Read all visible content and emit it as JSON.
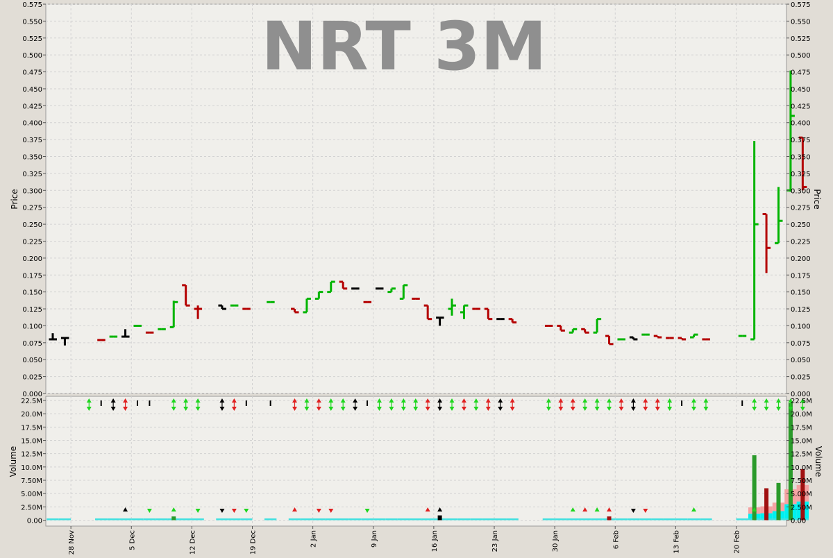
{
  "chart_data": [
    {
      "type": "ohlc",
      "title": "NRT 3M",
      "ylabel": "Price",
      "ylim": [
        0,
        0.575
      ],
      "yticks": [
        "0.000",
        "0.025",
        "0.050",
        "0.075",
        "0.100",
        "0.125",
        "0.150",
        "0.175",
        "0.200",
        "0.225",
        "0.250",
        "0.275",
        "0.300",
        "0.325",
        "0.350",
        "0.375",
        "0.400",
        "0.425",
        "0.450",
        "0.475",
        "0.500",
        "0.525",
        "0.550",
        "0.575"
      ],
      "grid": true,
      "colors": {
        "up": "#00b400",
        "down": "#b40000",
        "neutral": "#000000",
        "background": "#f0efeb"
      },
      "bars": [
        {
          "x": 0,
          "open": 0.08,
          "high": 0.089,
          "low": 0.08,
          "close": 0.08,
          "dir": "n"
        },
        {
          "x": 1,
          "open": 0.082,
          "high": 0.082,
          "low": 0.071,
          "close": 0.082,
          "dir": "n"
        },
        {
          "x": 4,
          "open": 0.079,
          "high": 0.079,
          "low": 0.079,
          "close": 0.079,
          "dir": "d"
        },
        {
          "x": 5,
          "open": 0.084,
          "high": 0.084,
          "low": 0.084,
          "close": 0.084,
          "dir": "u"
        },
        {
          "x": 6,
          "open": 0.084,
          "high": 0.095,
          "low": 0.084,
          "close": 0.084,
          "dir": "n"
        },
        {
          "x": 7,
          "open": 0.1,
          "high": 0.1,
          "low": 0.1,
          "close": 0.1,
          "dir": "u"
        },
        {
          "x": 8,
          "open": 0.09,
          "high": 0.09,
          "low": 0.09,
          "close": 0.09,
          "dir": "d"
        },
        {
          "x": 9,
          "open": 0.095,
          "high": 0.095,
          "low": 0.095,
          "close": 0.095,
          "dir": "u"
        },
        {
          "x": 10,
          "open": 0.098,
          "high": 0.137,
          "low": 0.098,
          "close": 0.135,
          "dir": "u"
        },
        {
          "x": 11,
          "open": 0.16,
          "high": 0.16,
          "low": 0.13,
          "close": 0.13,
          "dir": "d"
        },
        {
          "x": 12,
          "open": 0.125,
          "high": 0.13,
          "low": 0.11,
          "close": 0.125,
          "dir": "d"
        },
        {
          "x": 14,
          "open": 0.13,
          "high": 0.13,
          "low": 0.125,
          "close": 0.125,
          "dir": "n"
        },
        {
          "x": 15,
          "open": 0.13,
          "high": 0.13,
          "low": 0.13,
          "close": 0.13,
          "dir": "u"
        },
        {
          "x": 16,
          "open": 0.125,
          "high": 0.125,
          "low": 0.125,
          "close": 0.125,
          "dir": "d"
        },
        {
          "x": 18,
          "open": 0.135,
          "high": 0.135,
          "low": 0.135,
          "close": 0.135,
          "dir": "u"
        },
        {
          "x": 20,
          "open": 0.125,
          "high": 0.125,
          "low": 0.12,
          "close": 0.12,
          "dir": "d"
        },
        {
          "x": 21,
          "open": 0.12,
          "high": 0.14,
          "low": 0.12,
          "close": 0.14,
          "dir": "u"
        },
        {
          "x": 22,
          "open": 0.14,
          "high": 0.15,
          "low": 0.14,
          "close": 0.15,
          "dir": "u"
        },
        {
          "x": 23,
          "open": 0.15,
          "high": 0.165,
          "low": 0.15,
          "close": 0.165,
          "dir": "u"
        },
        {
          "x": 24,
          "open": 0.165,
          "high": 0.165,
          "low": 0.155,
          "close": 0.155,
          "dir": "d"
        },
        {
          "x": 25,
          "open": 0.155,
          "high": 0.155,
          "low": 0.155,
          "close": 0.155,
          "dir": "n"
        },
        {
          "x": 26,
          "open": 0.135,
          "high": 0.135,
          "low": 0.135,
          "close": 0.135,
          "dir": "d"
        },
        {
          "x": 27,
          "open": 0.155,
          "high": 0.155,
          "low": 0.155,
          "close": 0.155,
          "dir": "n"
        },
        {
          "x": 28,
          "open": 0.15,
          "high": 0.155,
          "low": 0.15,
          "close": 0.155,
          "dir": "u"
        },
        {
          "x": 29,
          "open": 0.14,
          "high": 0.16,
          "low": 0.14,
          "close": 0.16,
          "dir": "u"
        },
        {
          "x": 30,
          "open": 0.14,
          "high": 0.14,
          "low": 0.14,
          "close": 0.14,
          "dir": "d"
        },
        {
          "x": 31,
          "open": 0.13,
          "high": 0.13,
          "low": 0.11,
          "close": 0.11,
          "dir": "d"
        },
        {
          "x": 32,
          "open": 0.112,
          "high": 0.112,
          "low": 0.1,
          "close": 0.112,
          "dir": "n"
        },
        {
          "x": 33,
          "open": 0.125,
          "high": 0.14,
          "low": 0.115,
          "close": 0.13,
          "dir": "u"
        },
        {
          "x": 34,
          "open": 0.12,
          "high": 0.13,
          "low": 0.11,
          "close": 0.13,
          "dir": "u"
        },
        {
          "x": 35,
          "open": 0.125,
          "high": 0.125,
          "low": 0.125,
          "close": 0.125,
          "dir": "d"
        },
        {
          "x": 36,
          "open": 0.125,
          "high": 0.125,
          "low": 0.11,
          "close": 0.11,
          "dir": "d"
        },
        {
          "x": 37,
          "open": 0.11,
          "high": 0.11,
          "low": 0.11,
          "close": 0.11,
          "dir": "n"
        },
        {
          "x": 38,
          "open": 0.11,
          "high": 0.11,
          "low": 0.105,
          "close": 0.105,
          "dir": "d"
        },
        {
          "x": 41,
          "open": 0.1,
          "high": 0.1,
          "low": 0.1,
          "close": 0.1,
          "dir": "d"
        },
        {
          "x": 42,
          "open": 0.1,
          "high": 0.1,
          "low": 0.093,
          "close": 0.093,
          "dir": "d"
        },
        {
          "x": 43,
          "open": 0.09,
          "high": 0.095,
          "low": 0.09,
          "close": 0.095,
          "dir": "u"
        },
        {
          "x": 44,
          "open": 0.095,
          "high": 0.095,
          "low": 0.09,
          "close": 0.09,
          "dir": "d"
        },
        {
          "x": 45,
          "open": 0.09,
          "high": 0.11,
          "low": 0.09,
          "close": 0.11,
          "dir": "u"
        },
        {
          "x": 46,
          "open": 0.085,
          "high": 0.085,
          "low": 0.073,
          "close": 0.073,
          "dir": "d"
        },
        {
          "x": 47,
          "open": 0.08,
          "high": 0.08,
          "low": 0.08,
          "close": 0.08,
          "dir": "u"
        },
        {
          "x": 48,
          "open": 0.083,
          "high": 0.083,
          "low": 0.08,
          "close": 0.08,
          "dir": "n"
        },
        {
          "x": 49,
          "open": 0.087,
          "high": 0.087,
          "low": 0.087,
          "close": 0.087,
          "dir": "u"
        },
        {
          "x": 50,
          "open": 0.085,
          "high": 0.085,
          "low": 0.083,
          "close": 0.083,
          "dir": "d"
        },
        {
          "x": 51,
          "open": 0.082,
          "high": 0.082,
          "low": 0.082,
          "close": 0.082,
          "dir": "d"
        },
        {
          "x": 52,
          "open": 0.082,
          "high": 0.082,
          "low": 0.08,
          "close": 0.08,
          "dir": "d"
        },
        {
          "x": 53,
          "open": 0.083,
          "high": 0.087,
          "low": 0.083,
          "close": 0.087,
          "dir": "u"
        },
        {
          "x": 54,
          "open": 0.08,
          "high": 0.08,
          "low": 0.08,
          "close": 0.08,
          "dir": "d"
        },
        {
          "x": 57,
          "open": 0.085,
          "high": 0.085,
          "low": 0.085,
          "close": 0.085,
          "dir": "u"
        },
        {
          "x": 58,
          "open": 0.08,
          "high": 0.373,
          "low": 0.08,
          "close": 0.25,
          "dir": "u"
        },
        {
          "x": 59,
          "open": 0.265,
          "high": 0.265,
          "low": 0.178,
          "close": 0.215,
          "dir": "d"
        },
        {
          "x": 60,
          "open": 0.222,
          "high": 0.305,
          "low": 0.222,
          "close": 0.255,
          "dir": "u"
        },
        {
          "x": 61,
          "open": 0.3,
          "high": 0.477,
          "low": 0.298,
          "close": 0.41,
          "dir": "u"
        },
        {
          "x": 62,
          "open": 0.378,
          "high": 0.378,
          "low": 0.3,
          "close": 0.305,
          "dir": "d"
        }
      ]
    },
    {
      "type": "bar",
      "ylabel": "Volume",
      "ylim": [
        0,
        22500000
      ],
      "yticks": [
        "0.00",
        "2.50M",
        "5.00M",
        "7.50M",
        "10.0M",
        "12.5M",
        "15.0M",
        "17.5M",
        "20.0M",
        "22.5M"
      ],
      "xticks": [
        "28 Nov",
        "5 Dec",
        "12 Dec",
        "19 Dec",
        "2 Jan",
        "9 Jan",
        "16 Jan",
        "23 Jan",
        "30 Jan",
        "6 Feb",
        "13 Feb",
        "20 Feb"
      ],
      "colors": {
        "up": "#2a9a2a",
        "down": "#a01010",
        "neutral": "#000000",
        "band_upper": "#f4a2a2",
        "band_lower": "#00f0f0"
      },
      "volumes": [
        {
          "x": 10,
          "v": 700000,
          "dir": "u"
        },
        {
          "x": 32,
          "v": 900000,
          "dir": "n"
        },
        {
          "x": 46,
          "v": 700000,
          "dir": "d"
        },
        {
          "x": 58,
          "v": 12200000,
          "dir": "u"
        },
        {
          "x": 59,
          "v": 6000000,
          "dir": "d"
        },
        {
          "x": 60,
          "v": 7000000,
          "dir": "u"
        },
        {
          "x": 61,
          "v": 22000000,
          "dir": "u"
        },
        {
          "x": 62,
          "v": 9600000,
          "dir": "d"
        }
      ],
      "band": [
        {
          "x": 58,
          "lower": 1200000,
          "upper": 2400000
        },
        {
          "x": 59,
          "lower": 1300000,
          "upper": 2600000
        },
        {
          "x": 60,
          "lower": 1700000,
          "upper": 3300000
        },
        {
          "x": 61,
          "lower": 3000000,
          "upper": 5800000
        },
        {
          "x": 62,
          "lower": 3500000,
          "upper": 6600000
        }
      ],
      "signals": {
        "double": [
          {
            "x": 3,
            "c": "g"
          },
          {
            "x": 5,
            "c": "k"
          },
          {
            "x": 6,
            "c": "r"
          },
          {
            "x": 10,
            "c": "g"
          },
          {
            "x": 11,
            "c": "g"
          },
          {
            "x": 12,
            "c": "g"
          },
          {
            "x": 14,
            "c": "k"
          },
          {
            "x": 15,
            "c": "r"
          },
          {
            "x": 20,
            "c": "r"
          },
          {
            "x": 21,
            "c": "g"
          },
          {
            "x": 22,
            "c": "r"
          },
          {
            "x": 23,
            "c": "g"
          },
          {
            "x": 24,
            "c": "g"
          },
          {
            "x": 25,
            "c": "k"
          },
          {
            "x": 27,
            "c": "g"
          },
          {
            "x": 28,
            "c": "g"
          },
          {
            "x": 29,
            "c": "g"
          },
          {
            "x": 30,
            "c": "g"
          },
          {
            "x": 31,
            "c": "r"
          },
          {
            "x": 32,
            "c": "k"
          },
          {
            "x": 33,
            "c": "g"
          },
          {
            "x": 34,
            "c": "r"
          },
          {
            "x": 35,
            "c": "g"
          },
          {
            "x": 36,
            "c": "r"
          },
          {
            "x": 37,
            "c": "k"
          },
          {
            "x": 38,
            "c": "r"
          },
          {
            "x": 41,
            "c": "g"
          },
          {
            "x": 42,
            "c": "r"
          },
          {
            "x": 43,
            "c": "r"
          },
          {
            "x": 44,
            "c": "g"
          },
          {
            "x": 45,
            "c": "g"
          },
          {
            "x": 46,
            "c": "g"
          },
          {
            "x": 47,
            "c": "r"
          },
          {
            "x": 48,
            "c": "k"
          },
          {
            "x": 49,
            "c": "r"
          },
          {
            "x": 50,
            "c": "r"
          },
          {
            "x": 51,
            "c": "g"
          },
          {
            "x": 53,
            "c": "g"
          },
          {
            "x": 54,
            "c": "g"
          },
          {
            "x": 58,
            "c": "g"
          },
          {
            "x": 59,
            "c": "g"
          },
          {
            "x": 60,
            "c": "g"
          },
          {
            "x": 61,
            "c": "g"
          },
          {
            "x": 62,
            "c": "g"
          }
        ],
        "ticks": [
          4,
          7,
          8,
          16,
          18,
          26,
          52,
          57
        ],
        "lower": [
          {
            "x": 6,
            "c": "k",
            "t": "up"
          },
          {
            "x": 8,
            "c": "g",
            "t": "down"
          },
          {
            "x": 10,
            "c": "g",
            "t": "up"
          },
          {
            "x": 12,
            "c": "g",
            "t": "down"
          },
          {
            "x": 14,
            "c": "k",
            "t": "down"
          },
          {
            "x": 15,
            "c": "r",
            "t": "down"
          },
          {
            "x": 16,
            "c": "g",
            "t": "down"
          },
          {
            "x": 20,
            "c": "r",
            "t": "up"
          },
          {
            "x": 22,
            "c": "r",
            "t": "down"
          },
          {
            "x": 23,
            "c": "r",
            "t": "down"
          },
          {
            "x": 26,
            "c": "g",
            "t": "down"
          },
          {
            "x": 31,
            "c": "r",
            "t": "up"
          },
          {
            "x": 32,
            "c": "k",
            "t": "up"
          },
          {
            "x": 43,
            "c": "g",
            "t": "up"
          },
          {
            "x": 44,
            "c": "r",
            "t": "up"
          },
          {
            "x": 45,
            "c": "g",
            "t": "up"
          },
          {
            "x": 46,
            "c": "r",
            "t": "up"
          },
          {
            "x": 48,
            "c": "k",
            "t": "down"
          },
          {
            "x": 49,
            "c": "r",
            "t": "down"
          },
          {
            "x": 53,
            "c": "g",
            "t": "up"
          },
          {
            "x": 58,
            "c": "g",
            "t": "up"
          }
        ]
      }
    }
  ]
}
